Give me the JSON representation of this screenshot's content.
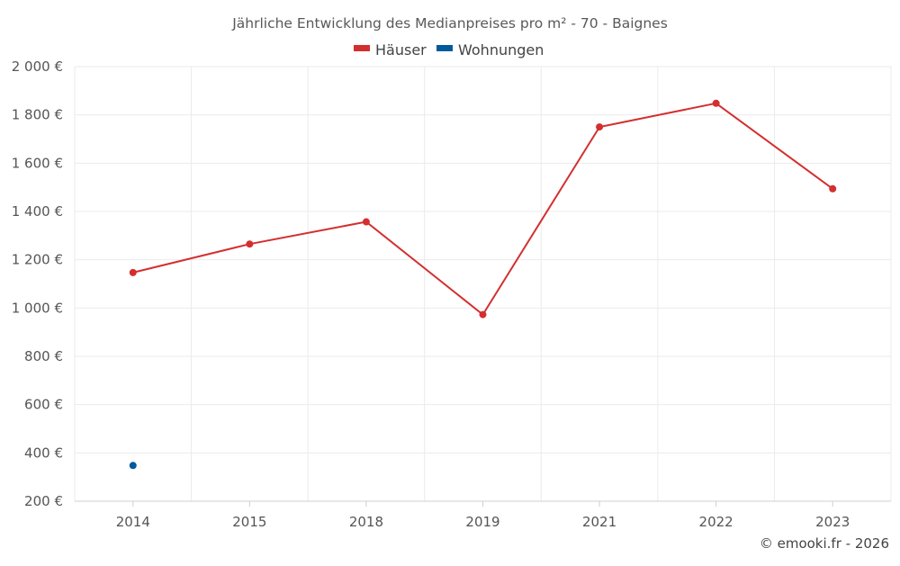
{
  "chart_data": {
    "type": "line",
    "title": "Jährliche Entwicklung des Medianpreises pro m² - 70 - Baignes",
    "categories": [
      "2014",
      "2015",
      "2018",
      "2019",
      "2021",
      "2022",
      "2023"
    ],
    "ylim": [
      200,
      2000
    ],
    "y_ticks": [
      200,
      400,
      600,
      800,
      1000,
      1200,
      1400,
      1600,
      1800,
      2000
    ],
    "y_tick_labels": [
      "200 €",
      "400 €",
      "600 €",
      "800 €",
      "1 000 €",
      "1 200 €",
      "1 400 €",
      "1 600 €",
      "1 800 €",
      "2 000 €"
    ],
    "grid": true,
    "legend_position": "top-center",
    "series": [
      {
        "name": "Häuser",
        "color": "#d32f2f",
        "values": [
          1147,
          1265,
          1357,
          973,
          1750,
          1848,
          1494
        ]
      },
      {
        "name": "Wohnungen",
        "color": "#005a9c",
        "values": [
          348,
          null,
          null,
          null,
          null,
          null,
          null
        ]
      }
    ],
    "credit": "© emooki.fr - 2026"
  }
}
